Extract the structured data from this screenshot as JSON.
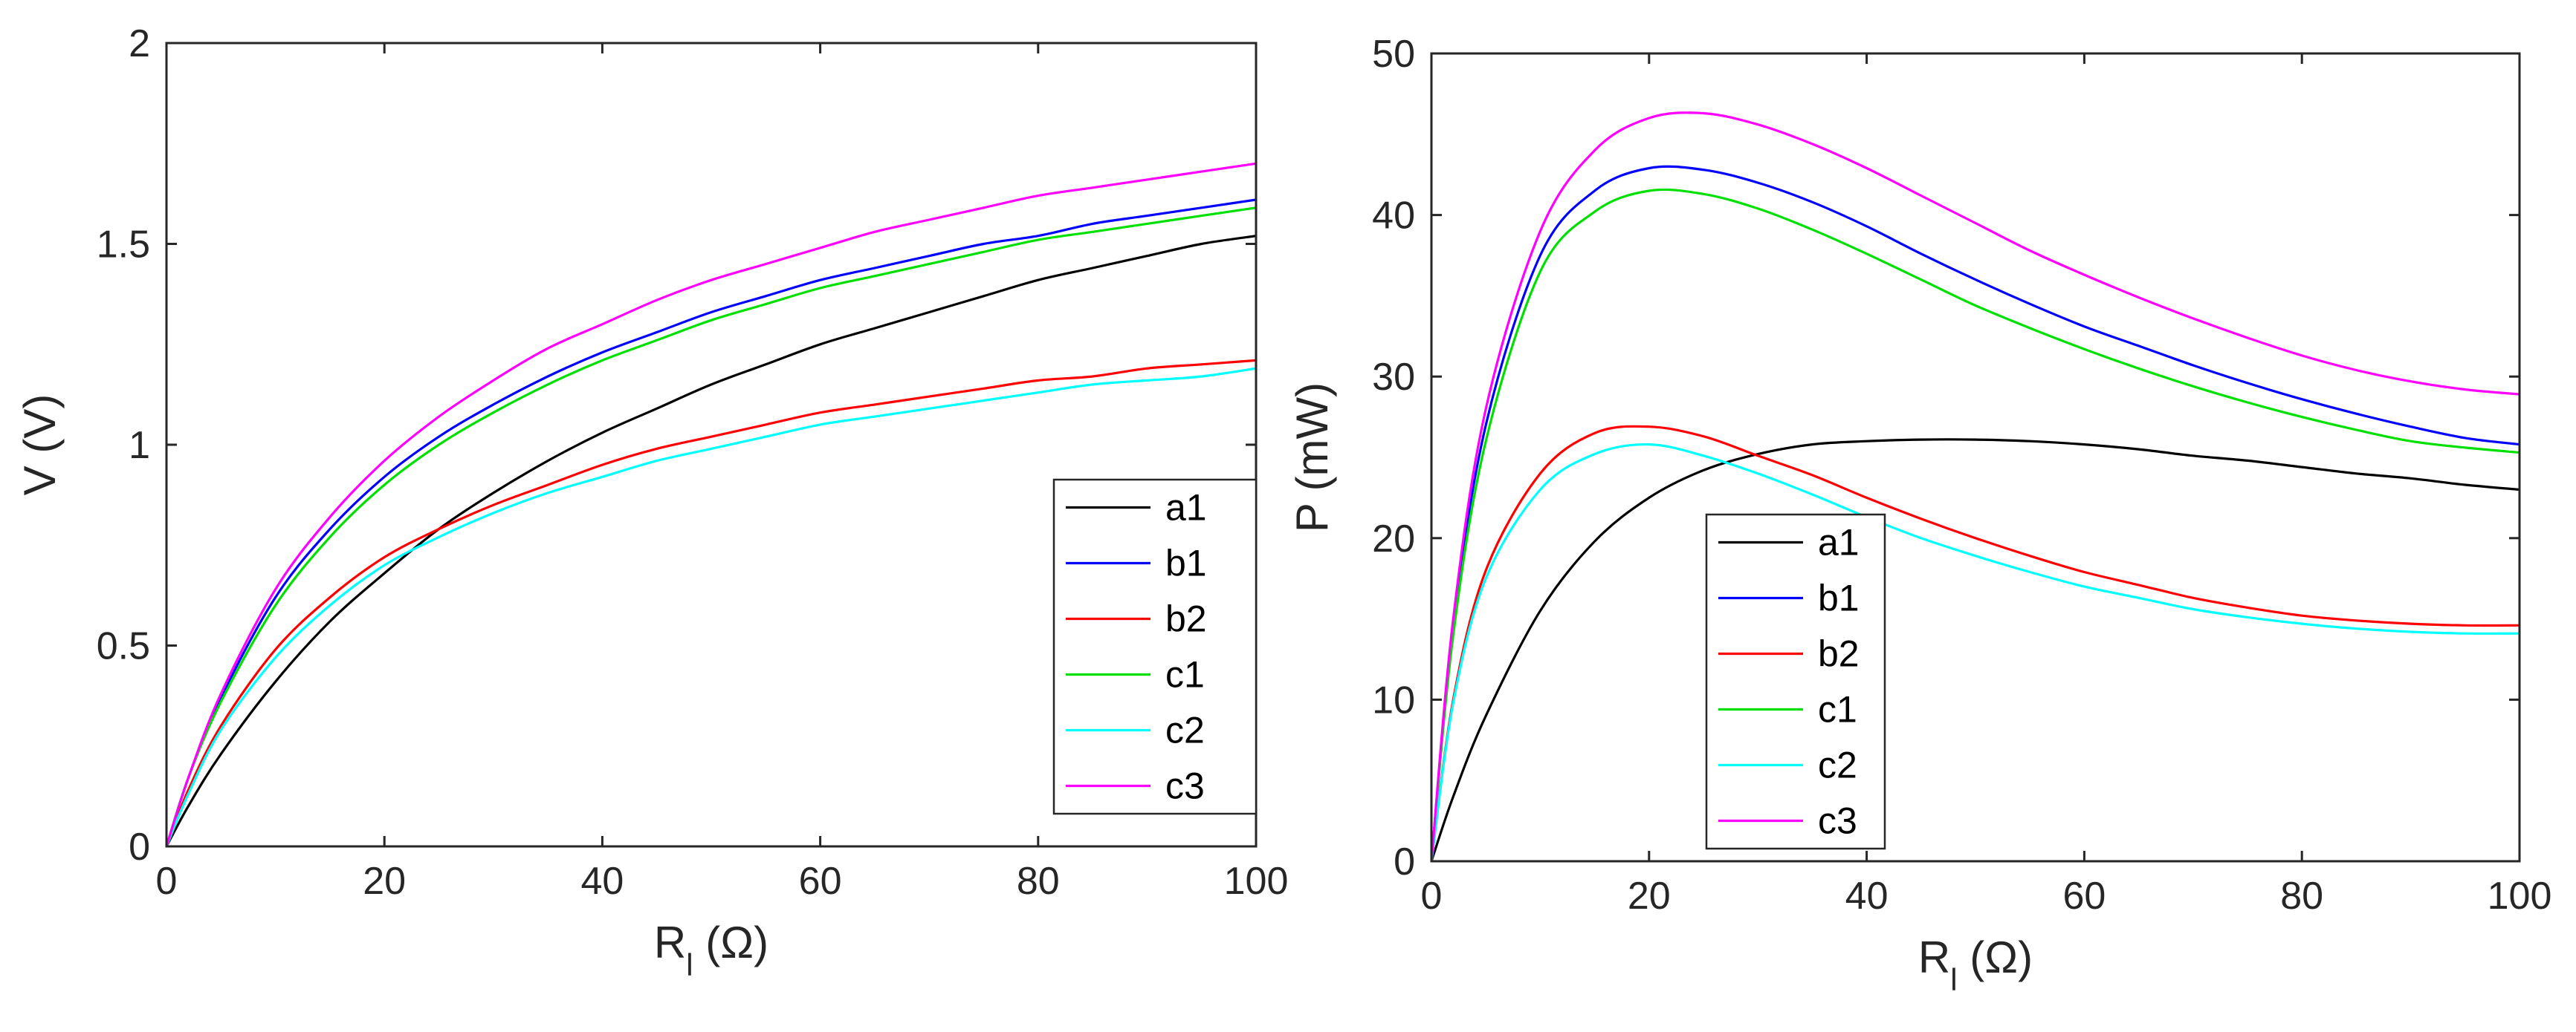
{
  "chart_data": [
    {
      "type": "line",
      "panel": "left",
      "xlabel_main": "R",
      "xlabel_sub": "l",
      "xlabel_unit": " (Ω)",
      "ylabel": "V (V)",
      "xlim": [
        0,
        100
      ],
      "ylim": [
        0,
        2
      ],
      "x_ticks": [
        "0",
        "20",
        "40",
        "60",
        "80",
        "100"
      ],
      "y_ticks": [
        "0",
        "0.5",
        "1",
        "1.5",
        "2"
      ],
      "legend_position": "bottom-right",
      "x": [
        0,
        2,
        5,
        10,
        15,
        20,
        25,
        30,
        35,
        40,
        45,
        50,
        55,
        60,
        65,
        70,
        75,
        80,
        85,
        90,
        95,
        100
      ],
      "series": [
        {
          "name": "a1",
          "color": "#000000",
          "values": [
            0,
            0.1,
            0.23,
            0.41,
            0.56,
            0.68,
            0.79,
            0.88,
            0.96,
            1.03,
            1.09,
            1.15,
            1.2,
            1.25,
            1.29,
            1.33,
            1.37,
            1.41,
            1.44,
            1.47,
            1.5,
            1.52
          ]
        },
        {
          "name": "b1",
          "color": "#0000ff",
          "values": [
            0,
            0.17,
            0.37,
            0.62,
            0.79,
            0.92,
            1.02,
            1.1,
            1.17,
            1.23,
            1.28,
            1.33,
            1.37,
            1.41,
            1.44,
            1.47,
            1.5,
            1.52,
            1.55,
            1.57,
            1.59,
            1.61
          ]
        },
        {
          "name": "b2",
          "color": "#ff0000",
          "values": [
            0,
            0.14,
            0.3,
            0.49,
            0.62,
            0.72,
            0.79,
            0.85,
            0.9,
            0.95,
            0.99,
            1.02,
            1.05,
            1.08,
            1.1,
            1.12,
            1.14,
            1.16,
            1.17,
            1.19,
            1.2,
            1.21
          ]
        },
        {
          "name": "c1",
          "color": "#00e000",
          "values": [
            0,
            0.17,
            0.36,
            0.6,
            0.77,
            0.9,
            1.0,
            1.08,
            1.15,
            1.21,
            1.26,
            1.31,
            1.35,
            1.39,
            1.42,
            1.45,
            1.48,
            1.51,
            1.53,
            1.55,
            1.57,
            1.59
          ]
        },
        {
          "name": "c2",
          "color": "#00ffff",
          "values": [
            0,
            0.13,
            0.29,
            0.47,
            0.6,
            0.7,
            0.77,
            0.83,
            0.88,
            0.92,
            0.96,
            0.99,
            1.02,
            1.05,
            1.07,
            1.09,
            1.11,
            1.13,
            1.15,
            1.16,
            1.17,
            1.19
          ]
        },
        {
          "name": "c3",
          "color": "#ff00ff",
          "values": [
            0,
            0.17,
            0.38,
            0.64,
            0.82,
            0.96,
            1.07,
            1.16,
            1.24,
            1.3,
            1.36,
            1.41,
            1.45,
            1.49,
            1.53,
            1.56,
            1.59,
            1.62,
            1.64,
            1.66,
            1.68,
            1.7
          ]
        }
      ]
    },
    {
      "type": "line",
      "panel": "right",
      "xlabel_main": "R",
      "xlabel_sub": "l",
      "xlabel_unit": " (Ω)",
      "ylabel": "P (mW)",
      "xlim": [
        0,
        100
      ],
      "ylim": [
        0,
        50
      ],
      "x_ticks": [
        "0",
        "20",
        "40",
        "60",
        "80",
        "100"
      ],
      "y_ticks": [
        "0",
        "10",
        "20",
        "30",
        "40",
        "50"
      ],
      "legend_position": "bottom-center",
      "x": [
        0,
        2,
        5,
        10,
        15,
        20,
        25,
        30,
        35,
        40,
        45,
        50,
        55,
        60,
        65,
        70,
        75,
        80,
        85,
        90,
        95,
        100
      ],
      "series": [
        {
          "name": "a1",
          "color": "#000000",
          "values": [
            0,
            4.0,
            9.0,
            15.5,
            19.8,
            22.5,
            24.2,
            25.2,
            25.8,
            26.0,
            26.1,
            26.1,
            26.0,
            25.8,
            25.5,
            25.1,
            24.8,
            24.4,
            24.0,
            23.7,
            23.3,
            23.0
          ]
        },
        {
          "name": "b1",
          "color": "#0000ff",
          "values": [
            0,
            14.5,
            27.0,
            37.5,
            41.5,
            42.9,
            42.8,
            42.0,
            40.8,
            39.3,
            37.6,
            36.0,
            34.5,
            33.1,
            31.9,
            30.7,
            29.6,
            28.6,
            27.7,
            26.9,
            26.2,
            25.8
          ]
        },
        {
          "name": "b2",
          "color": "#ff0000",
          "values": [
            0,
            10.0,
            18.0,
            24.0,
            26.5,
            26.9,
            26.3,
            25.1,
            23.9,
            22.5,
            21.2,
            20.0,
            18.9,
            17.9,
            17.1,
            16.3,
            15.7,
            15.2,
            14.9,
            14.7,
            14.6,
            14.6
          ]
        },
        {
          "name": "c1",
          "color": "#00e000",
          "values": [
            0,
            14.0,
            26.0,
            36.5,
            40.2,
            41.5,
            41.3,
            40.4,
            39.1,
            37.6,
            36.0,
            34.4,
            33.0,
            31.7,
            30.5,
            29.4,
            28.4,
            27.5,
            26.7,
            26.0,
            25.6,
            25.3
          ]
        },
        {
          "name": "c2",
          "color": "#00ffff",
          "values": [
            0,
            9.8,
            17.5,
            23.0,
            25.2,
            25.8,
            25.1,
            24.0,
            22.7,
            21.3,
            20.0,
            18.9,
            17.9,
            17.0,
            16.3,
            15.6,
            15.1,
            14.7,
            14.4,
            14.2,
            14.1,
            14.1
          ]
        },
        {
          "name": "c3",
          "color": "#ff00ff",
          "values": [
            0,
            15.0,
            28.0,
            39.0,
            44.0,
            46.0,
            46.3,
            45.6,
            44.4,
            42.9,
            41.2,
            39.5,
            37.8,
            36.3,
            34.9,
            33.6,
            32.4,
            31.3,
            30.4,
            29.7,
            29.2,
            28.9
          ]
        }
      ]
    }
  ]
}
